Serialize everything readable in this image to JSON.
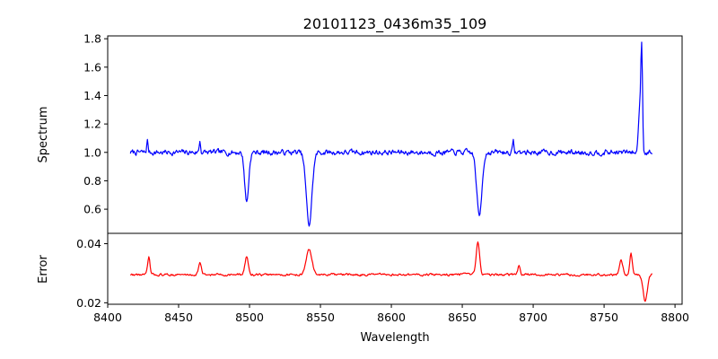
{
  "chart_data": {
    "type": "line",
    "title": "20101123_0436m35_109",
    "xlabel": "Wavelength",
    "xlim": [
      8400,
      8805
    ],
    "xticks": [
      8400,
      8450,
      8500,
      8550,
      8600,
      8650,
      8700,
      8750,
      8800
    ],
    "x_tick_labels": [
      "8400",
      "8450",
      "8500",
      "8550",
      "8600",
      "8650",
      "8700",
      "8750",
      "8800"
    ],
    "panels": [
      {
        "ylabel": "Spectrum",
        "ylim": [
          0.43,
          1.82
        ],
        "yticks": [
          0.6,
          0.8,
          1.0,
          1.2,
          1.4,
          1.6,
          1.8
        ],
        "y_tick_labels": [
          "0.6",
          "0.8",
          "1.0",
          "1.2",
          "1.4",
          "1.6",
          "1.8"
        ],
        "series": [
          {
            "color": "#0000ff",
            "x_start": 8416,
            "x_end": 8784,
            "baseline": 1.0,
            "noise": 0.035,
            "features": [
              {
                "center": 8498.0,
                "depth": -0.35,
                "width": 1.4
              },
              {
                "center": 8542.0,
                "depth": -0.51,
                "width": 2.0
              },
              {
                "center": 8662.0,
                "depth": -0.45,
                "width": 1.8
              },
              {
                "center": 8428.0,
                "depth": 0.08,
                "width": 0.5
              },
              {
                "center": 8465.0,
                "depth": 0.08,
                "width": 0.5
              },
              {
                "center": 8686.0,
                "depth": 0.07,
                "width": 0.5
              },
              {
                "center": 8775.0,
                "depth": 0.3,
                "width": 0.8
              },
              {
                "center": 8776.5,
                "depth": 0.74,
                "width": 0.6
              }
            ]
          }
        ]
      },
      {
        "ylabel": "Error",
        "ylim": [
          0.0195,
          0.0435
        ],
        "yticks": [
          0.02,
          0.04
        ],
        "y_tick_labels": [
          "0.02",
          "0.04"
        ],
        "series": [
          {
            "color": "#ff0000",
            "x_start": 8416,
            "x_end": 8784,
            "baseline": 0.0295,
            "noise": 0.0007,
            "features": [
              {
                "center": 8429.0,
                "depth": 0.006,
                "width": 0.8
              },
              {
                "center": 8465.0,
                "depth": 0.004,
                "width": 1.0
              },
              {
                "center": 8498.0,
                "depth": 0.006,
                "width": 1.2
              },
              {
                "center": 8542.0,
                "depth": 0.0085,
                "width": 2.0
              },
              {
                "center": 8661.0,
                "depth": 0.011,
                "width": 1.2
              },
              {
                "center": 8690.0,
                "depth": 0.003,
                "width": 0.8
              },
              {
                "center": 8762.0,
                "depth": 0.005,
                "width": 1.2
              },
              {
                "center": 8769.0,
                "depth": 0.007,
                "width": 0.9
              },
              {
                "center": 8779.0,
                "depth": -0.009,
                "width": 1.5
              }
            ]
          }
        ]
      }
    ]
  }
}
